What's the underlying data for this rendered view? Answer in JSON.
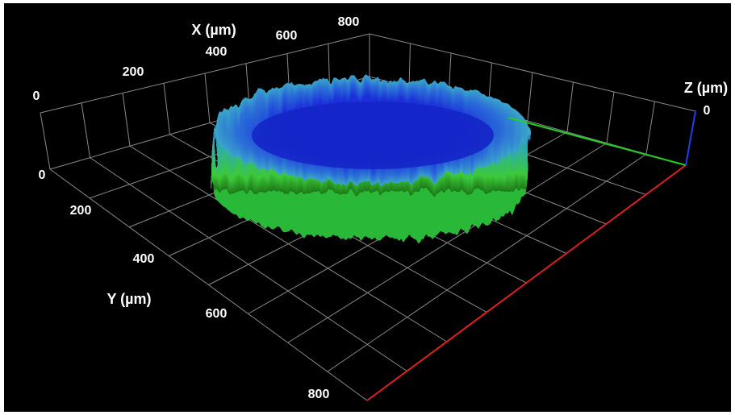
{
  "axes": {
    "x": {
      "label": "X (µm)",
      "ticks": [
        "0",
        "200",
        "400",
        "600",
        "800"
      ]
    },
    "y": {
      "label": "Y (µm)",
      "ticks": [
        "0",
        "200",
        "400",
        "600",
        "800"
      ]
    },
    "z": {
      "label": "Z (µm)",
      "ticks": [
        "0"
      ]
    }
  }
}
